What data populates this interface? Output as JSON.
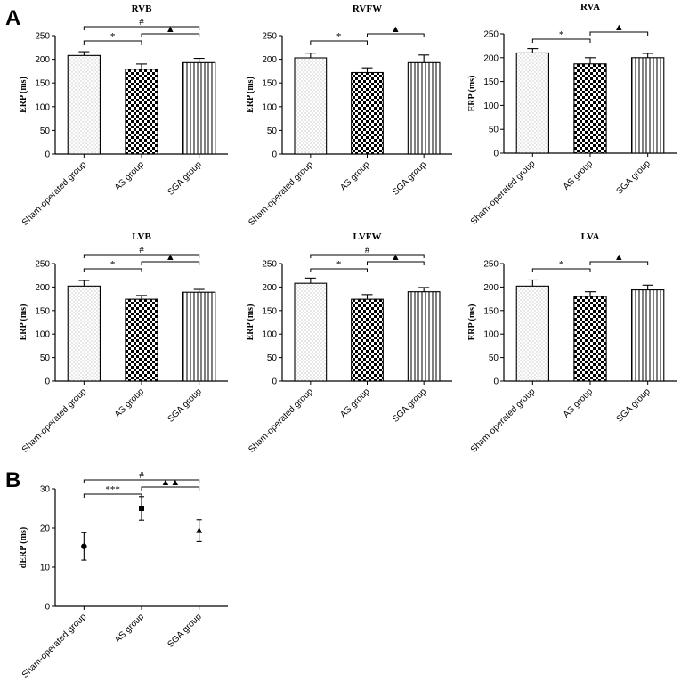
{
  "figure": {
    "panel_label_a": "A",
    "panel_label_b": "B",
    "colors": {
      "axis": "#000000",
      "fill": "#ffffff",
      "marker": "#000000"
    }
  },
  "chart_data": [
    {
      "id": "rvb",
      "type": "bar",
      "title": "RVB",
      "ylabel": "ERP (ms)",
      "categories": [
        "Sham-operated group",
        "AS group",
        "SGA  group"
      ],
      "values": [
        208,
        179,
        193
      ],
      "errors": [
        8,
        11,
        9
      ],
      "ylim": [
        0,
        250
      ],
      "yticks": [
        0,
        50,
        100,
        150,
        200,
        250
      ],
      "brackets": [
        {
          "from": 0,
          "to": 1,
          "symbol": "*",
          "level": 0
        },
        {
          "from": 1,
          "to": 2,
          "symbol": "▲",
          "level": 1
        },
        {
          "from": 0,
          "to": 2,
          "symbol": "#",
          "level": 2
        }
      ]
    },
    {
      "id": "rvfw",
      "type": "bar",
      "title": "RVFW",
      "ylabel": "ERP (ms)",
      "categories": [
        "Sham-operated group",
        "AS group",
        "SGA  group"
      ],
      "values": [
        203,
        172,
        193
      ],
      "errors": [
        10,
        10,
        16
      ],
      "ylim": [
        0,
        250
      ],
      "yticks": [
        0,
        50,
        100,
        150,
        200,
        250
      ],
      "brackets": [
        {
          "from": 0,
          "to": 1,
          "symbol": "*",
          "level": 0
        },
        {
          "from": 1,
          "to": 2,
          "symbol": "▲",
          "level": 1
        }
      ]
    },
    {
      "id": "rva",
      "type": "bar",
      "title": "RVA",
      "ylabel": "ERP (ms)",
      "categories": [
        "Sham-operated group",
        "AS group",
        "SGA  group"
      ],
      "values": [
        210,
        187,
        200
      ],
      "errors": [
        9,
        13,
        9
      ],
      "ylim": [
        0,
        250
      ],
      "yticks": [
        0,
        50,
        100,
        150,
        200,
        250
      ],
      "brackets": [
        {
          "from": 0,
          "to": 1,
          "symbol": "*",
          "level": 0
        },
        {
          "from": 1,
          "to": 2,
          "symbol": "▲",
          "level": 1
        }
      ]
    },
    {
      "id": "lvb",
      "type": "bar",
      "title": "LVB",
      "ylabel": "ERP (ms)",
      "categories": [
        "Sham-operated group",
        "AS group",
        "SGA  group"
      ],
      "values": [
        202,
        174,
        189
      ],
      "errors": [
        12,
        8,
        6
      ],
      "ylim": [
        0,
        250
      ],
      "yticks": [
        0,
        50,
        100,
        150,
        200,
        250
      ],
      "brackets": [
        {
          "from": 0,
          "to": 1,
          "symbol": "*",
          "level": 0
        },
        {
          "from": 1,
          "to": 2,
          "symbol": "▲",
          "level": 1
        },
        {
          "from": 0,
          "to": 2,
          "symbol": "#",
          "level": 2
        }
      ]
    },
    {
      "id": "lvfw",
      "type": "bar",
      "title": "LVFW",
      "ylabel": "ERP (ms)",
      "categories": [
        "Sham-operated group",
        "AS group",
        "SGA  group"
      ],
      "values": [
        208,
        174,
        190
      ],
      "errors": [
        11,
        10,
        9
      ],
      "ylim": [
        0,
        250
      ],
      "yticks": [
        0,
        50,
        100,
        150,
        200,
        250
      ],
      "brackets": [
        {
          "from": 0,
          "to": 1,
          "symbol": "*",
          "level": 0
        },
        {
          "from": 1,
          "to": 2,
          "symbol": "▲",
          "level": 1
        },
        {
          "from": 0,
          "to": 2,
          "symbol": "#",
          "level": 2
        }
      ]
    },
    {
      "id": "lva",
      "type": "bar",
      "title": "LVA",
      "ylabel": "ERP (ms)",
      "categories": [
        "Sham-operated group",
        "AS group",
        "SGA  group"
      ],
      "values": [
        202,
        180,
        194
      ],
      "errors": [
        13,
        10,
        10
      ],
      "ylim": [
        0,
        250
      ],
      "yticks": [
        0,
        50,
        100,
        150,
        200,
        250
      ],
      "brackets": [
        {
          "from": 0,
          "to": 1,
          "symbol": "*",
          "level": 0
        },
        {
          "from": 1,
          "to": 2,
          "symbol": "▲",
          "level": 1
        }
      ]
    },
    {
      "id": "derp",
      "type": "scatter",
      "title": "",
      "ylabel": "dERP (ms)",
      "categories": [
        "Sham-operated group",
        "AS group",
        "SGA  group"
      ],
      "values": [
        15.3,
        25.0,
        19.3
      ],
      "errors": [
        3.5,
        3.0,
        2.8
      ],
      "markers": [
        "circle",
        "square",
        "triangle"
      ],
      "ylim": [
        0,
        30
      ],
      "yticks": [
        0,
        10,
        20,
        30
      ],
      "brackets": [
        {
          "from": 0,
          "to": 1,
          "symbol": "***",
          "level": 0
        },
        {
          "from": 1,
          "to": 2,
          "symbol": "▲▲",
          "level": 1
        },
        {
          "from": 0,
          "to": 2,
          "symbol": "#",
          "level": 2
        }
      ]
    }
  ]
}
